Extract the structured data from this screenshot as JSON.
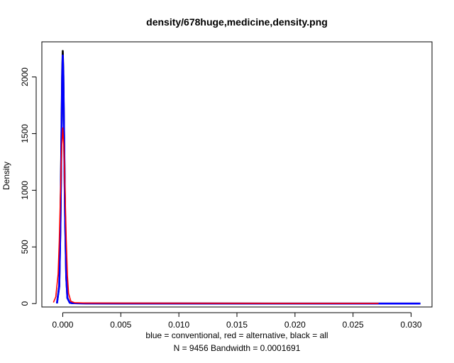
{
  "chart_data": {
    "type": "line",
    "title": "density/678huge,medicine,density.png",
    "ylabel": "Density",
    "xlabel_line1": "blue = conventional, red = alternative, black = all",
    "xlabel_line2": "N = 9456   Bandwidth = 0.0001691",
    "xlim": [
      -0.0018,
      0.0318
    ],
    "ylim": [
      -30,
      2310
    ],
    "xticks": [
      0.0,
      0.005,
      0.01,
      0.015,
      0.02,
      0.025,
      0.03
    ],
    "xtick_labels": [
      "0.000",
      "0.005",
      "0.010",
      "0.015",
      "0.020",
      "0.025",
      "0.030"
    ],
    "yticks": [
      0,
      500,
      1000,
      1500,
      2000
    ],
    "ytick_labels": [
      "0",
      "500",
      "1000",
      "1500",
      "2000"
    ],
    "grid": false,
    "series": [
      {
        "color": "#000000",
        "x": [
          -0.0005,
          -0.0003,
          -0.0002,
          -0.0001,
          -5e-05,
          0.0,
          5e-05,
          0.0001,
          0.0002,
          0.0003,
          0.0004,
          0.0006,
          0.0008,
          0.001,
          0.002,
          0.005,
          0.01,
          0.02,
          0.0308
        ],
        "y": [
          2,
          160,
          700,
          1600,
          2050,
          2230,
          2050,
          1620,
          780,
          240,
          50,
          8,
          4,
          3,
          2,
          1,
          1,
          0.5,
          0.3
        ]
      },
      {
        "color": "#0000ff",
        "x": [
          -0.0005,
          -0.0003,
          -0.0002,
          -0.0001,
          -5e-05,
          0.0,
          5e-05,
          0.0001,
          0.0002,
          0.0003,
          0.0004,
          0.0006,
          0.0008,
          0.001,
          0.002,
          0.005,
          0.01,
          0.02,
          0.0308
        ],
        "y": [
          2,
          150,
          680,
          1550,
          2000,
          2190,
          2010,
          1580,
          760,
          230,
          48,
          8,
          4,
          3,
          2,
          1,
          1,
          0.5,
          0.3
        ]
      },
      {
        "color": "#ff0000",
        "x": [
          -0.0008,
          -0.0006,
          -0.0004,
          -0.0003,
          -0.0002,
          -0.0001,
          0.0,
          0.0001,
          0.0002,
          0.0003,
          0.0004,
          0.0005,
          0.0007,
          0.001,
          0.002,
          0.005,
          0.01,
          0.02,
          0.0272
        ],
        "y": [
          10,
          60,
          260,
          550,
          950,
          1350,
          1550,
          1380,
          980,
          560,
          250,
          90,
          20,
          8,
          5,
          4,
          3,
          2,
          2
        ]
      }
    ]
  }
}
